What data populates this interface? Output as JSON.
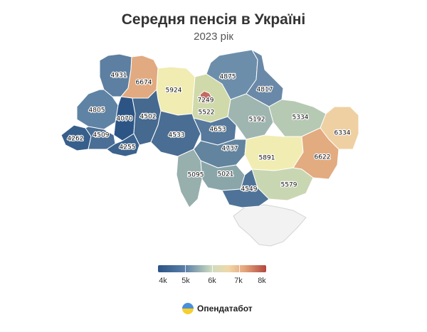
{
  "title": "Середня пенсія в Україні",
  "subtitle": "2023 рік",
  "map": {
    "regions": [
      {
        "id": "volyn",
        "value": "4931",
        "color": "#5d7fa1"
      },
      {
        "id": "rivne",
        "value": "6674",
        "color": "#e2aa80"
      },
      {
        "id": "zhytomyr",
        "value": "5924",
        "color": "#f0ecb2"
      },
      {
        "id": "kyiv-oblast",
        "value": "5522",
        "color": "#d0d9a9"
      },
      {
        "id": "kyiv-city",
        "value": "7249",
        "color": "#c46b62"
      },
      {
        "id": "chernihiv",
        "value": "4875",
        "color": "#6d8eab"
      },
      {
        "id": "sumy",
        "value": "4817",
        "color": "#6a89a8"
      },
      {
        "id": "lviv",
        "value": "4805",
        "color": "#5f83a4"
      },
      {
        "id": "ternopil",
        "value": "4070",
        "color": "#2c5586"
      },
      {
        "id": "khmelnytskyi",
        "value": "4502",
        "color": "#45698f"
      },
      {
        "id": "zakarpattia",
        "value": "4262",
        "color": "#375f8c"
      },
      {
        "id": "ivano-frankivsk",
        "value": "4509",
        "color": "#4a6e95"
      },
      {
        "id": "chernivtsi",
        "value": "4255",
        "color": "#3b638d"
      },
      {
        "id": "vinnytsia",
        "value": "4533",
        "color": "#4a6d93"
      },
      {
        "id": "cherkasy",
        "value": "4653",
        "color": "#56799c"
      },
      {
        "id": "poltava",
        "value": "5192",
        "color": "#9fb6b0"
      },
      {
        "id": "kharkiv",
        "value": "5334",
        "color": "#b6c9b3"
      },
      {
        "id": "luhansk",
        "value": "6334",
        "color": "#efd0a2"
      },
      {
        "id": "kirovohrad",
        "value": "4737",
        "color": "#62849f"
      },
      {
        "id": "dnipropetrovsk",
        "value": "5891",
        "color": "#f1edb2"
      },
      {
        "id": "donetsk",
        "value": "6622",
        "color": "#e3ab80"
      },
      {
        "id": "odesa",
        "value": "5095",
        "color": "#97afad"
      },
      {
        "id": "mykolaiv",
        "value": "5021",
        "color": "#8ba6a9"
      },
      {
        "id": "zaporizhzhia",
        "value": "5579",
        "color": "#c9d6b2"
      },
      {
        "id": "kherson",
        "value": "4549",
        "color": "#4f7398"
      }
    ],
    "crimea_color": "#f2f2f2"
  },
  "legend": {
    "labels": [
      "4k",
      "5k",
      "6k",
      "7k",
      "8k"
    ],
    "colors": [
      "#2b5486",
      "#5a7fa8",
      "#cfdcc0",
      "#f0d8a8",
      "#e4a47c",
      "#b2473e"
    ]
  },
  "brand": {
    "name": "Опендатабот"
  }
}
